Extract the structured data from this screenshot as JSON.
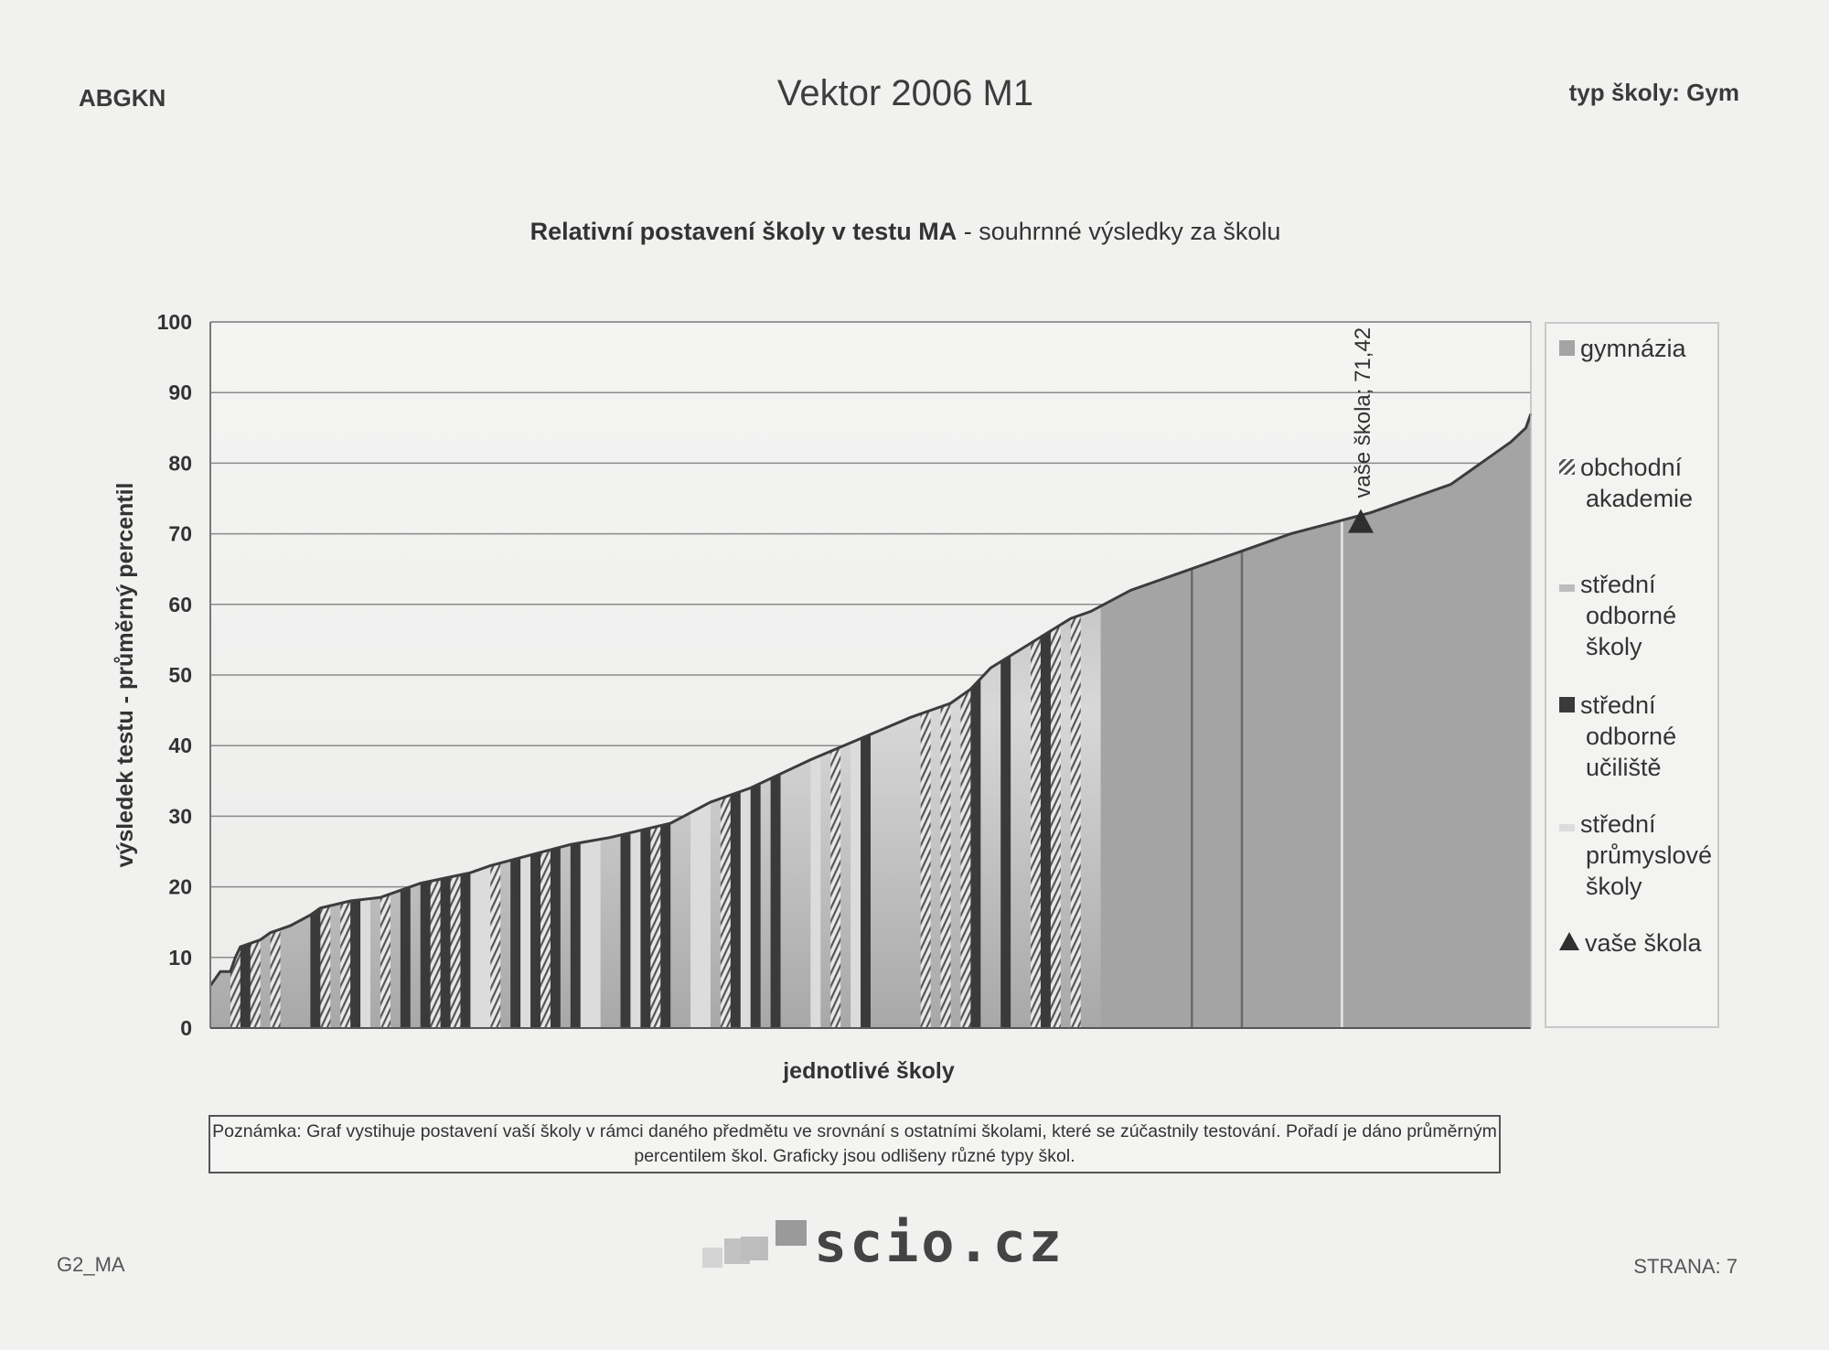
{
  "header": {
    "left": "ABGKN",
    "title": "Vektor 2006 M1",
    "right": "typ školy: Gym"
  },
  "chart_title": {
    "bold": "Relativní postavení školy v testu MA",
    "rest": " - souhrnné výsledky za školu"
  },
  "note": "Poznámka: Graf vystihuje postavení vaší školy v rámci daného předmětu ve srovnání s ostatními školami, které se zúčastnily testování. Pořadí je dáno průměrným percentilem škol. Graficky jsou odlišeny různé typy škol.",
  "footer": {
    "left": "G2_MA",
    "right": "STRANA: 7",
    "logo_text": "scio.cz"
  },
  "colors": {
    "gymnazia": "#a4a4a4",
    "obchodni": "#8a8a8a",
    "stredni_odborne_skoly": "#bdbdbd",
    "stredni_odborne_uciliste": "#3a3a3a",
    "prumyslove": "#dcdcdc",
    "marker": "#2f2f2f"
  },
  "chart_data": {
    "type": "area",
    "title": "Relativní postavení školy v testu MA - souhrnné výsledky za školu",
    "xlabel": "jednotlivé školy",
    "ylabel": "výsledek testu - průměrný percentil",
    "ylim": [
      0,
      100
    ],
    "yticks": [
      0,
      10,
      20,
      30,
      40,
      50,
      60,
      70,
      80,
      90,
      100
    ],
    "grid": true,
    "legend_position": "right",
    "legend": [
      {
        "label": "gymnázia",
        "key": "gymnazia"
      },
      {
        "label": "obchodní akademie",
        "key": "obchodni"
      },
      {
        "label": "střední odborné školy",
        "key": "stredni_odborne_skoly"
      },
      {
        "label": "střední odborné učiliště",
        "key": "stredni_odborne_uciliste"
      },
      {
        "label": "střední průmyslové školy",
        "key": "prumyslove"
      },
      {
        "label": "vaše škola",
        "key": "marker"
      }
    ],
    "curve": [
      [
        0,
        6
      ],
      [
        1,
        8
      ],
      [
        2,
        8
      ],
      [
        2.5,
        10
      ],
      [
        3,
        11.5
      ],
      [
        5,
        12.5
      ],
      [
        6,
        13.5
      ],
      [
        8,
        14.5
      ],
      [
        10,
        16
      ],
      [
        11,
        17
      ],
      [
        14,
        18
      ],
      [
        17,
        18.5
      ],
      [
        19,
        19.5
      ],
      [
        21,
        20.5
      ],
      [
        26,
        22
      ],
      [
        28,
        23
      ],
      [
        32,
        24.5
      ],
      [
        36,
        26
      ],
      [
        40,
        27
      ],
      [
        43,
        28
      ],
      [
        46,
        29
      ],
      [
        50,
        32
      ],
      [
        54,
        34
      ],
      [
        57,
        36
      ],
      [
        60,
        38
      ],
      [
        65,
        41
      ],
      [
        70,
        44
      ],
      [
        74,
        46
      ],
      [
        76,
        48
      ],
      [
        78,
        51
      ],
      [
        82,
        54.5
      ],
      [
        86,
        58
      ],
      [
        88,
        59
      ],
      [
        92,
        62
      ],
      [
        96,
        64
      ],
      [
        100,
        66
      ],
      [
        104,
        68
      ],
      [
        108,
        70
      ],
      [
        112,
        71.5
      ],
      [
        116,
        73
      ],
      [
        120,
        75
      ],
      [
        124,
        77
      ],
      [
        126,
        79
      ],
      [
        128,
        81
      ],
      [
        130,
        83
      ],
      [
        131.5,
        85
      ],
      [
        132,
        87
      ]
    ],
    "x_count": 132,
    "bars_dense_end": 89,
    "your_school": {
      "label": "vaše škola; 71,42",
      "value": 71.42,
      "rank": 115
    }
  }
}
